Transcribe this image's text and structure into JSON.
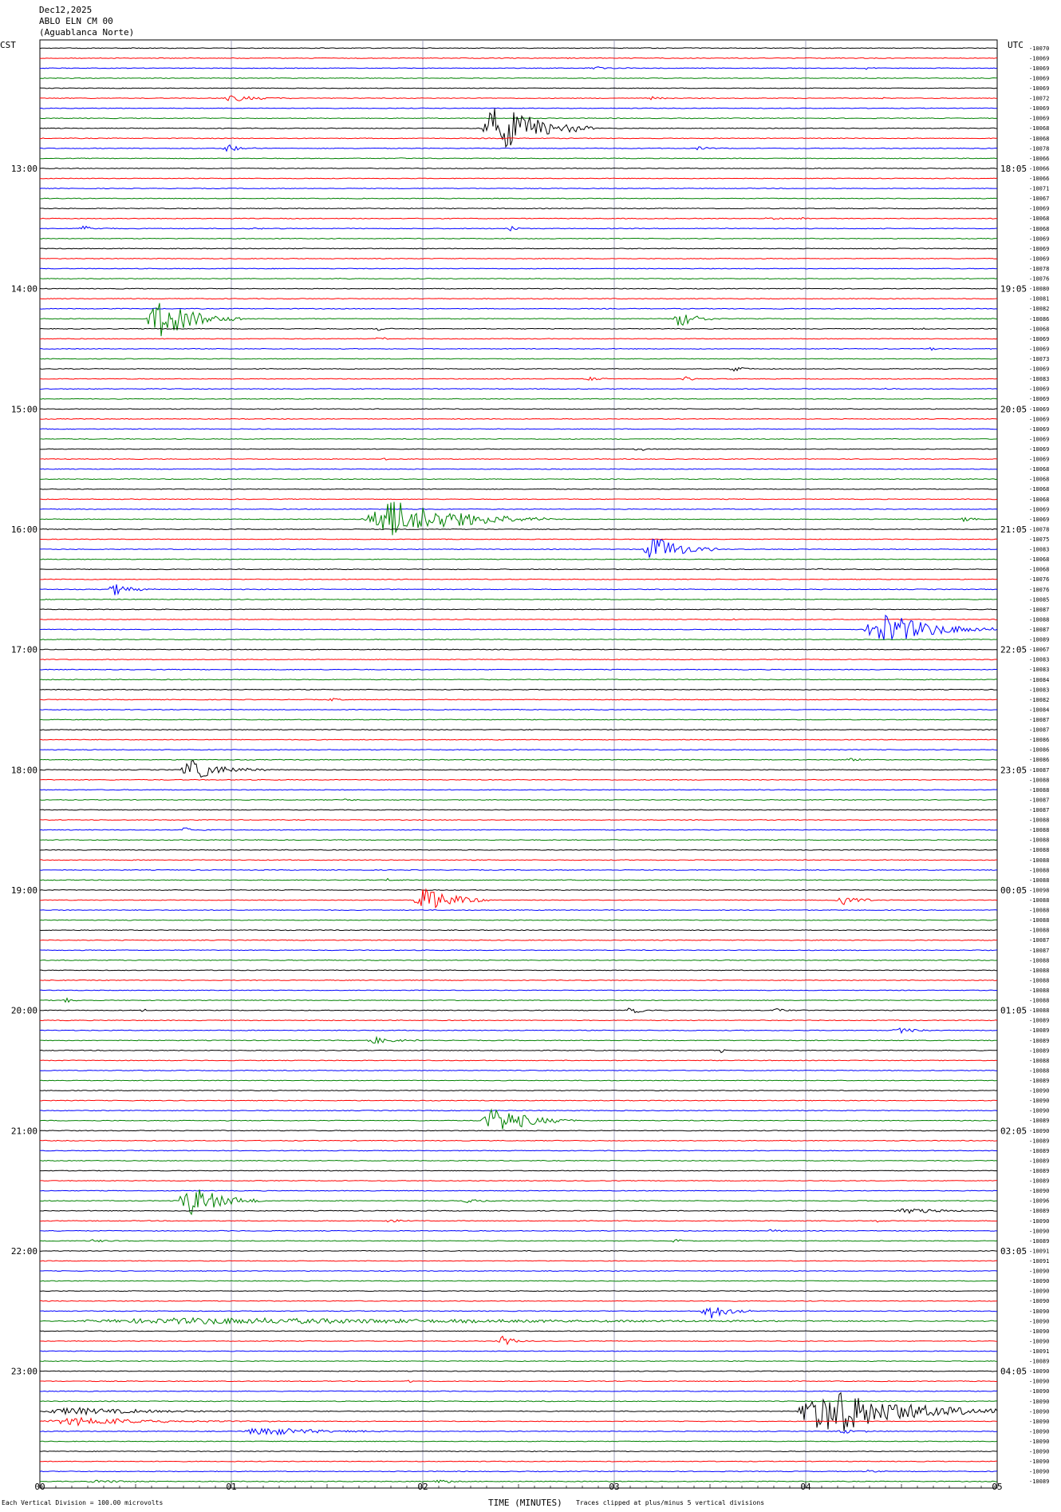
{
  "header": {
    "date": "Dec12,2025",
    "station": "ABLO ELN CM 00",
    "location": "(Aguablanca Norte)"
  },
  "left_zone_label": "CST",
  "right_zone_label": "UTC",
  "footer": {
    "left_note": "Each Vertical Division =  100.00 microvolts",
    "xlabel": "TIME (MINUTES)",
    "right_note": "Traces clipped at plus/minus 5 vertical divisions"
  },
  "colors": {
    "trace_cycle": [
      "#000000",
      "#ff0000",
      "#0000ff",
      "#008000"
    ],
    "grid": "#8888aa",
    "frame": "#000000"
  },
  "chart_data": {
    "type": "line",
    "subtype": "helicorder",
    "x_ticks": [
      "00",
      "01",
      "02",
      "03",
      "04",
      "05"
    ],
    "xlim": [
      0,
      5
    ],
    "left_time_labels": [
      "13:00",
      "14:00",
      "15:00",
      "16:00",
      "17:00",
      "18:00",
      "19:00",
      "20:00",
      "21:00",
      "22:00",
      "23:00"
    ],
    "right_time_labels": [
      "18:05",
      "19:05",
      "20:05",
      "21:05",
      "22:05",
      "23:05",
      "00:05",
      "01:05",
      "02:05",
      "03:05",
      "04:05"
    ],
    "first_left_label_row": 12,
    "rows_per_hour": 12,
    "row_count": 144,
    "row_offsets": [
      "-10070",
      "-10069",
      "-10069",
      "-10069",
      "-10069",
      "-10072",
      "-10069",
      "-10069",
      "-10068",
      "-10068",
      "-10078",
      "-10066",
      "-10066",
      "-10066",
      "-10071",
      "-10067",
      "-10069",
      "-10068",
      "-10068",
      "-10069",
      "-10069",
      "-10069",
      "-10078",
      "-10076",
      "-10080",
      "-10081",
      "-10082",
      "-10086",
      "-10068",
      "-10069",
      "-10069",
      "-10073",
      "-10069",
      "-10083",
      "-10069",
      "-10069",
      "-10069",
      "-10069",
      "-10069",
      "-10069",
      "-10069",
      "-10069",
      "-10068",
      "-10068",
      "-10068",
      "-10068",
      "-10069",
      "-10069",
      "-10078",
      "-10075",
      "-10083",
      "-10068",
      "-10068",
      "-10076",
      "-10076",
      "-10085",
      "-10087",
      "-10088",
      "-10087",
      "-10089",
      "-10067",
      "-10083",
      "-10083",
      "-10084",
      "-10083",
      "-10082",
      "-10084",
      "-10087",
      "-10087",
      "-10086",
      "-10086",
      "-10086",
      "-10087",
      "-10088",
      "-10088",
      "-10087",
      "-10087",
      "-10088",
      "-10088",
      "-10088",
      "-10088",
      "-10088",
      "-10088",
      "-10088",
      "-10098",
      "-10088",
      "-10088",
      "-10088",
      "-10088",
      "-10087",
      "-10087",
      "-10088",
      "-10088",
      "-10088",
      "-10088",
      "-10088",
      "-10088",
      "-10089",
      "-10089",
      "-10089",
      "-10089",
      "-10088",
      "-10088",
      "-10089",
      "-10090",
      "-10090",
      "-10090",
      "-10089",
      "-10090",
      "-10089",
      "-10089",
      "-10089",
      "-10089",
      "-10089",
      "-10090",
      "-10096",
      "-10089",
      "-10090",
      "-10090",
      "-10089",
      "-10091",
      "-10091",
      "-10090",
      "-10090",
      "-10090",
      "-10090",
      "-10090",
      "-10090",
      "-10090",
      "-10090",
      "-10091",
      "-10089",
      "-10090",
      "-10090",
      "-10090",
      "-10090",
      "-10090",
      "-10090",
      "-10090",
      "-10090",
      "-10090",
      "-10090",
      "-10090",
      "-10089"
    ],
    "events": [
      {
        "row": 1,
        "start_min": 2.75,
        "amp": 0.25,
        "dur_min": 0.1
      },
      {
        "row": 2,
        "start_min": 2.85,
        "amp": 0.35,
        "dur_min": 0.25
      },
      {
        "row": 2,
        "start_min": 4.3,
        "amp": 0.2,
        "dur_min": 0.1
      },
      {
        "row": 5,
        "start_min": 0.95,
        "amp": 0.6,
        "dur_min": 0.4
      },
      {
        "row": 5,
        "start_min": 3.18,
        "amp": 0.35,
        "dur_min": 0.15
      },
      {
        "row": 5,
        "start_min": 4.38,
        "amp": 0.3,
        "dur_min": 0.08
      },
      {
        "row": 8,
        "start_min": 2.3,
        "amp": 4.5,
        "dur_min": 0.6
      },
      {
        "row": 10,
        "start_min": 0.95,
        "amp": 0.7,
        "dur_min": 0.2
      },
      {
        "row": 10,
        "start_min": 3.4,
        "amp": 0.3,
        "dur_min": 0.2
      },
      {
        "row": 11,
        "start_min": 1.85,
        "amp": 0.2,
        "dur_min": 0.1
      },
      {
        "row": 17,
        "start_min": 3.78,
        "amp": 0.25,
        "dur_min": 0.2
      },
      {
        "row": 17,
        "start_min": 3.95,
        "amp": 0.3,
        "dur_min": 0.1
      },
      {
        "row": 18,
        "start_min": 0.2,
        "amp": 0.5,
        "dur_min": 0.2
      },
      {
        "row": 18,
        "start_min": 2.43,
        "amp": 1.0,
        "dur_min": 0.1
      },
      {
        "row": 18,
        "start_min": 1.08,
        "amp": 0.2,
        "dur_min": 0.2
      },
      {
        "row": 23,
        "start_min": 1.55,
        "amp": 0.2,
        "dur_min": 0.1
      },
      {
        "row": 27,
        "start_min": 0.55,
        "amp": 3.5,
        "dur_min": 0.5
      },
      {
        "row": 27,
        "start_min": 3.3,
        "amp": 1.5,
        "dur_min": 0.25
      },
      {
        "row": 28,
        "start_min": 1.75,
        "amp": 0.4,
        "dur_min": 0.1
      },
      {
        "row": 28,
        "start_min": 4.55,
        "amp": 0.35,
        "dur_min": 0.15
      },
      {
        "row": 29,
        "start_min": 1.75,
        "amp": 0.5,
        "dur_min": 0.1
      },
      {
        "row": 30,
        "start_min": 4.62,
        "amp": 0.6,
        "dur_min": 0.08
      },
      {
        "row": 32,
        "start_min": 3.6,
        "amp": 0.5,
        "dur_min": 0.15
      },
      {
        "row": 33,
        "start_min": 2.85,
        "amp": 0.4,
        "dur_min": 0.15
      },
      {
        "row": 33,
        "start_min": 3.35,
        "amp": 0.6,
        "dur_min": 0.1
      },
      {
        "row": 34,
        "start_min": 4.4,
        "amp": 0.2,
        "dur_min": 0.15
      },
      {
        "row": 40,
        "start_min": 3.1,
        "amp": 0.3,
        "dur_min": 0.2
      },
      {
        "row": 41,
        "start_min": 1.78,
        "amp": 0.5,
        "dur_min": 0.06
      },
      {
        "row": 47,
        "start_min": 1.68,
        "amp": 3.5,
        "dur_min": 1.0
      },
      {
        "row": 47,
        "start_min": 4.8,
        "amp": 0.4,
        "dur_min": 0.15
      },
      {
        "row": 50,
        "start_min": 3.15,
        "amp": 2.5,
        "dur_min": 0.4
      },
      {
        "row": 52,
        "start_min": 4.05,
        "amp": 0.3,
        "dur_min": 0.1
      },
      {
        "row": 54,
        "start_min": 0.35,
        "amp": 1.2,
        "dur_min": 0.25
      },
      {
        "row": 57,
        "start_min": 3.6,
        "amp": 0.3,
        "dur_min": 0.06
      },
      {
        "row": 58,
        "start_min": 4.3,
        "amp": 3.0,
        "dur_min": 0.7
      },
      {
        "row": 65,
        "start_min": 1.5,
        "amp": 0.25,
        "dur_min": 0.15
      },
      {
        "row": 72,
        "start_min": 0.73,
        "amp": 1.8,
        "dur_min": 0.45
      },
      {
        "row": 71,
        "start_min": 4.2,
        "amp": 0.3,
        "dur_min": 0.2
      },
      {
        "row": 74,
        "start_min": 3.75,
        "amp": 0.3,
        "dur_min": 0.04
      },
      {
        "row": 75,
        "start_min": 1.55,
        "amp": 0.2,
        "dur_min": 0.2
      },
      {
        "row": 78,
        "start_min": 0.73,
        "amp": 0.6,
        "dur_min": 0.15
      },
      {
        "row": 83,
        "start_min": 1.8,
        "amp": 0.3,
        "dur_min": 0.1
      },
      {
        "row": 85,
        "start_min": 1.95,
        "amp": 2.5,
        "dur_min": 0.4
      },
      {
        "row": 85,
        "start_min": 4.15,
        "amp": 0.8,
        "dur_min": 0.3
      },
      {
        "row": 95,
        "start_min": 0.12,
        "amp": 0.5,
        "dur_min": 0.1
      },
      {
        "row": 96,
        "start_min": 0.53,
        "amp": 0.5,
        "dur_min": 0.05
      },
      {
        "row": 96,
        "start_min": 3.05,
        "amp": 0.8,
        "dur_min": 0.2
      },
      {
        "row": 96,
        "start_min": 3.8,
        "amp": 0.3,
        "dur_min": 0.3
      },
      {
        "row": 98,
        "start_min": 4.45,
        "amp": 0.5,
        "dur_min": 0.3
      },
      {
        "row": 99,
        "start_min": 1.7,
        "amp": 0.6,
        "dur_min": 0.3
      },
      {
        "row": 100,
        "start_min": 3.55,
        "amp": 0.5,
        "dur_min": 0.05
      },
      {
        "row": 107,
        "start_min": 2.3,
        "amp": 2.5,
        "dur_min": 0.5
      },
      {
        "row": 115,
        "start_min": 0.72,
        "amp": 2.8,
        "dur_min": 0.45
      },
      {
        "row": 115,
        "start_min": 2.2,
        "amp": 0.5,
        "dur_min": 0.2
      },
      {
        "row": 116,
        "start_min": 4.45,
        "amp": 0.6,
        "dur_min": 0.5
      },
      {
        "row": 117,
        "start_min": 1.8,
        "amp": 0.4,
        "dur_min": 0.15
      },
      {
        "row": 117,
        "start_min": 4.37,
        "amp": 0.4,
        "dur_min": 0.05
      },
      {
        "row": 118,
        "start_min": 3.8,
        "amp": 0.3,
        "dur_min": 0.15
      },
      {
        "row": 119,
        "start_min": 0.25,
        "amp": 0.3,
        "dur_min": 0.2
      },
      {
        "row": 119,
        "start_min": 3.3,
        "amp": 0.4,
        "dur_min": 0.1
      },
      {
        "row": 126,
        "start_min": 3.45,
        "amp": 1.5,
        "dur_min": 0.3
      },
      {
        "row": 127,
        "start_min": 0.1,
        "amp": 0.6,
        "dur_min": 4.9
      },
      {
        "row": 129,
        "start_min": 2.38,
        "amp": 1.0,
        "dur_min": 0.2
      },
      {
        "row": 133,
        "start_min": 1.92,
        "amp": 0.3,
        "dur_min": 0.05
      },
      {
        "row": 136,
        "start_min": 3.95,
        "amp": 4.5,
        "dur_min": 1.05
      },
      {
        "row": 136,
        "start_min": 0.0,
        "amp": 0.7,
        "dur_min": 1.1
      },
      {
        "row": 137,
        "start_min": 0.0,
        "amp": 0.7,
        "dur_min": 1.2
      },
      {
        "row": 138,
        "start_min": 1.05,
        "amp": 0.8,
        "dur_min": 0.8
      },
      {
        "row": 138,
        "start_min": 4.15,
        "amp": 0.4,
        "dur_min": 0.3
      },
      {
        "row": 142,
        "start_min": 4.3,
        "amp": 0.3,
        "dur_min": 0.2
      },
      {
        "row": 143,
        "start_min": 0.25,
        "amp": 0.3,
        "dur_min": 0.4
      },
      {
        "row": 143,
        "start_min": 2.05,
        "amp": 0.4,
        "dur_min": 0.2
      }
    ]
  }
}
